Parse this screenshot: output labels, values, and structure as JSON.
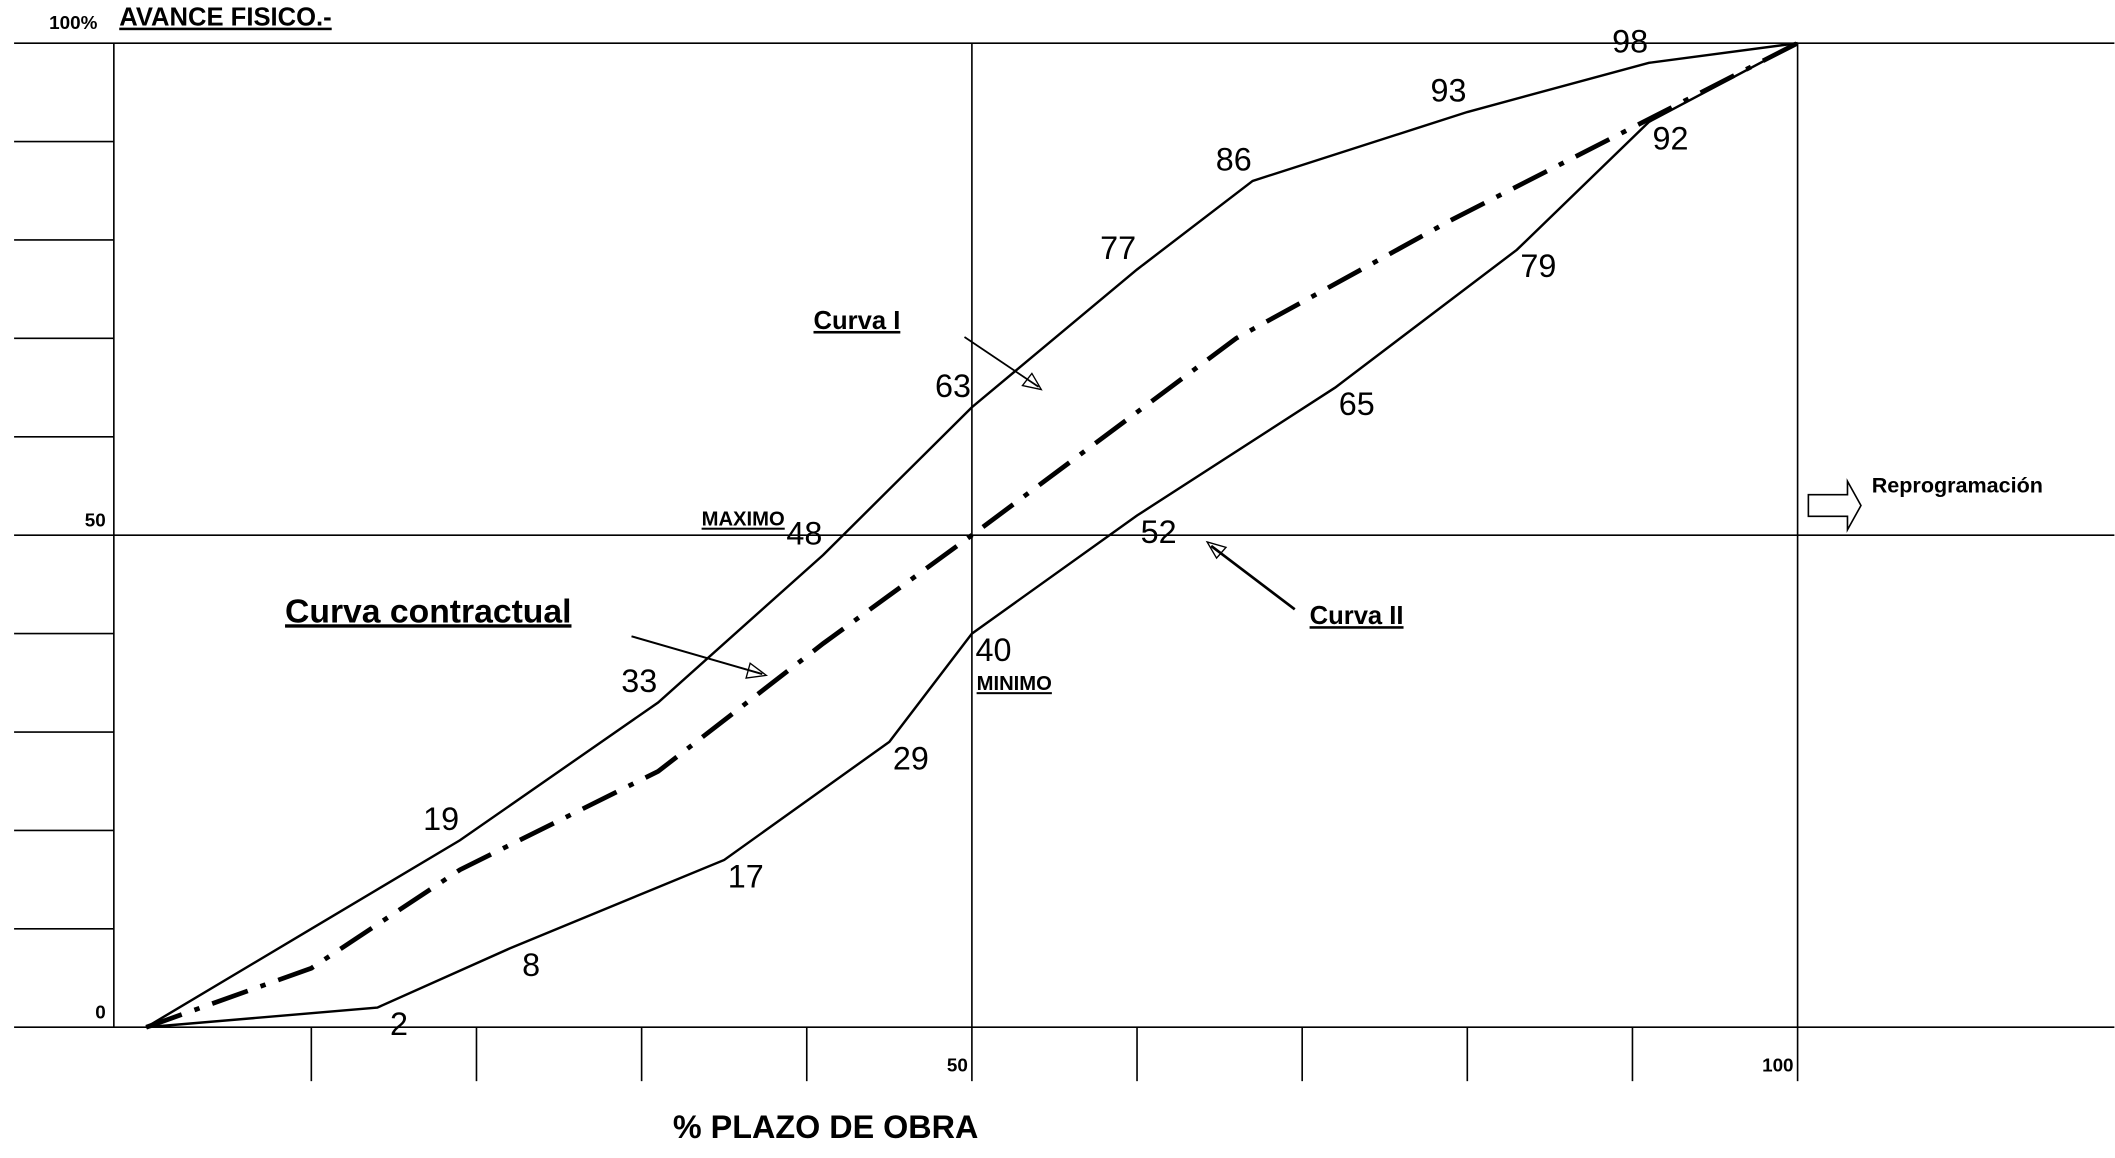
{
  "chart_data": {
    "type": "line",
    "title": "AVANCE  FISICO.-",
    "x_label": "%  PLAZO DE OBRA",
    "xlim": [
      0,
      100
    ],
    "ylim": [
      0,
      100
    ],
    "xticks": [
      {
        "value": 10,
        "label": null
      },
      {
        "value": 20,
        "label": null
      },
      {
        "value": 30,
        "label": null
      },
      {
        "value": 40,
        "label": null
      },
      50,
      {
        "value": 60,
        "label": null
      },
      {
        "value": 70,
        "label": null
      },
      {
        "value": 80,
        "label": null
      },
      {
        "value": 90,
        "label": null
      },
      100
    ],
    "yticks": [
      0,
      {
        "value": 10,
        "label": null
      },
      {
        "value": 20,
        "label": null
      },
      {
        "value": 30,
        "label": null
      },
      {
        "value": 40,
        "label": null
      },
      50,
      {
        "value": 60,
        "label": null
      },
      {
        "value": 70,
        "label": null
      },
      {
        "value": 80,
        "label": null
      },
      {
        "value": 90,
        "label": null
      },
      {
        "value": 100,
        "label": "100%"
      }
    ],
    "series": [
      {
        "name": "Curva I",
        "color": "#000000",
        "style": "solid",
        "x": [
          0,
          10,
          19,
          31,
          41,
          50,
          60,
          67,
          80,
          91,
          100
        ],
        "values": [
          0,
          10,
          19,
          33,
          48,
          63,
          77,
          86,
          93,
          98,
          100
        ],
        "value_labels": [
          null,
          null,
          "19",
          "33",
          "48",
          "63",
          "77",
          "86",
          "93",
          "98",
          null
        ]
      },
      {
        "name": "Curva contractual",
        "color": "#000000",
        "style": "dashdot",
        "x": [
          0,
          10,
          19,
          31,
          41,
          50,
          66,
          79,
          100
        ],
        "values": [
          0,
          6,
          16,
          26,
          39,
          50,
          70,
          82,
          100
        ]
      },
      {
        "name": "Curva II",
        "color": "#000000",
        "style": "solid",
        "x": [
          0,
          14,
          22,
          35,
          45,
          50,
          60,
          72,
          83,
          91,
          100
        ],
        "values": [
          0,
          2,
          8,
          17,
          29,
          40,
          52,
          65,
          79,
          92,
          100
        ],
        "value_labels": [
          null,
          "2",
          "8",
          "17",
          "29",
          "40",
          "52",
          "65",
          "79",
          "92",
          null
        ]
      }
    ],
    "annotations": {
      "maximo": "MAXIMO",
      "minimo": "MINIMO",
      "reprogramacion": "Reprogramación"
    }
  }
}
